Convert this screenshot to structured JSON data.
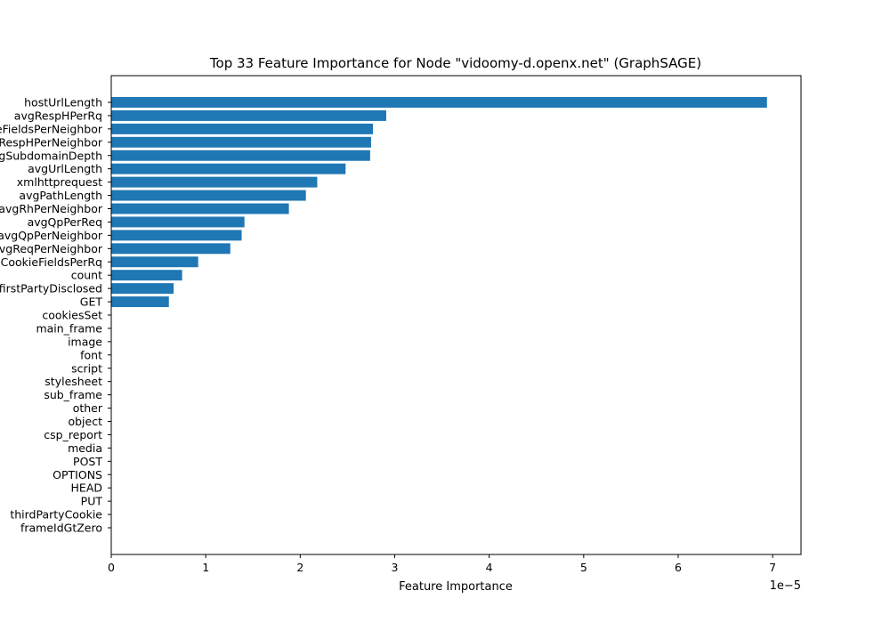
{
  "chart_data": {
    "type": "bar",
    "orientation": "horizontal",
    "title": "Top 33 Feature Importance for Node \"vidoomy-d.openx.net\" (GraphSAGE)",
    "xlabel": "Feature Importance",
    "ylabel": "",
    "x_scale_label": "1e−5",
    "x_scale": 1e-05,
    "xlim": [
      0,
      7.3
    ],
    "xticks": [
      "0",
      "1",
      "2",
      "3",
      "4",
      "5",
      "6",
      "7"
    ],
    "bar_color": "#1f77b4",
    "categories": [
      "hostUrlLength",
      "avgRespHPerRq",
      "avgCookieFieldsPerNeighbor",
      "avgRespHPerNeighbor",
      "avgSubdomainDepth",
      "avgUrlLength",
      "xmlhttprequest",
      "avgPathLength",
      "avgRhPerNeighbor",
      "avgQpPerReq",
      "avgQpPerNeighbor",
      "avgReqPerNeighbor",
      "avgCookieFieldsPerRq",
      "count",
      "firstPartyDisclosed",
      "GET",
      "cookiesSet",
      "main_frame",
      "image",
      "font",
      "script",
      "stylesheet",
      "sub_frame",
      "other",
      "object",
      "csp_report",
      "media",
      "POST",
      "OPTIONS",
      "HEAD",
      "PUT",
      "thirdPartyCookie",
      "frameIdGtZero"
    ],
    "values": [
      6.94,
      2.91,
      2.77,
      2.75,
      2.74,
      2.48,
      2.18,
      2.06,
      1.88,
      1.41,
      1.38,
      1.26,
      0.92,
      0.75,
      0.66,
      0.61,
      0,
      0,
      0,
      0,
      0,
      0,
      0,
      0,
      0,
      0,
      0,
      0,
      0,
      0,
      0,
      0,
      0
    ]
  }
}
